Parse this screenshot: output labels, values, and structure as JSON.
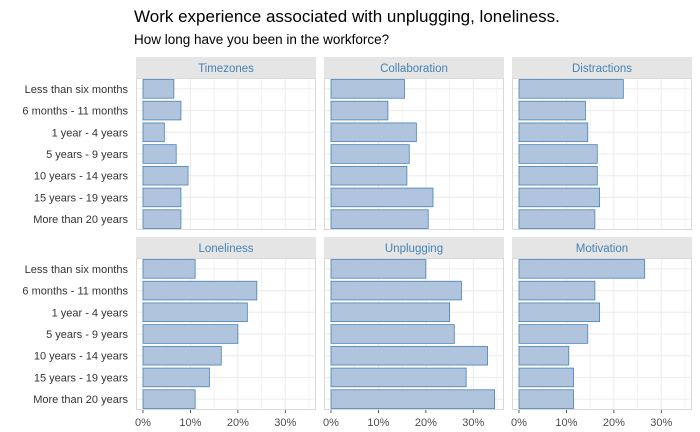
{
  "chart_data": {
    "type": "bar",
    "orientation": "horizontal",
    "title": "Work experience associated with unplugging, loneliness.",
    "subtitle": "How long have you been in the workforce?",
    "categories": [
      "Less than six months",
      "6 months - 11 months",
      "1 year - 4 years",
      "5 years - 9 years",
      "10 years - 14 years",
      "15 years - 19 years",
      "More than 20 years"
    ],
    "xlim": [
      0,
      35
    ],
    "x_ticks": [
      0,
      10,
      20,
      30
    ],
    "x_tick_labels": [
      "0%",
      "10%",
      "20%",
      "30%"
    ],
    "grid": true,
    "bar_fill": "#b0c4de",
    "bar_stroke": "#4682b4",
    "strip_text_color": "#4682b4",
    "strip_fill": "#e5e5e5",
    "panels": [
      {
        "name": "Timezones",
        "values": [
          6.5,
          8.0,
          4.5,
          7.0,
          9.5,
          8.0,
          8.0
        ]
      },
      {
        "name": "Collaboration",
        "values": [
          15.5,
          12.0,
          18.0,
          16.5,
          16.0,
          21.5,
          20.5
        ]
      },
      {
        "name": "Distractions",
        "values": [
          22.0,
          14.0,
          14.5,
          16.5,
          16.5,
          17.0,
          16.0
        ]
      },
      {
        "name": "Loneliness",
        "values": [
          11.0,
          24.0,
          22.0,
          20.0,
          16.5,
          14.0,
          11.0
        ]
      },
      {
        "name": "Unplugging",
        "values": [
          20.0,
          27.5,
          25.0,
          26.0,
          33.0,
          28.5,
          34.5
        ]
      },
      {
        "name": "Motivation",
        "values": [
          26.5,
          16.0,
          17.0,
          14.5,
          10.5,
          11.5,
          11.5
        ]
      }
    ]
  }
}
